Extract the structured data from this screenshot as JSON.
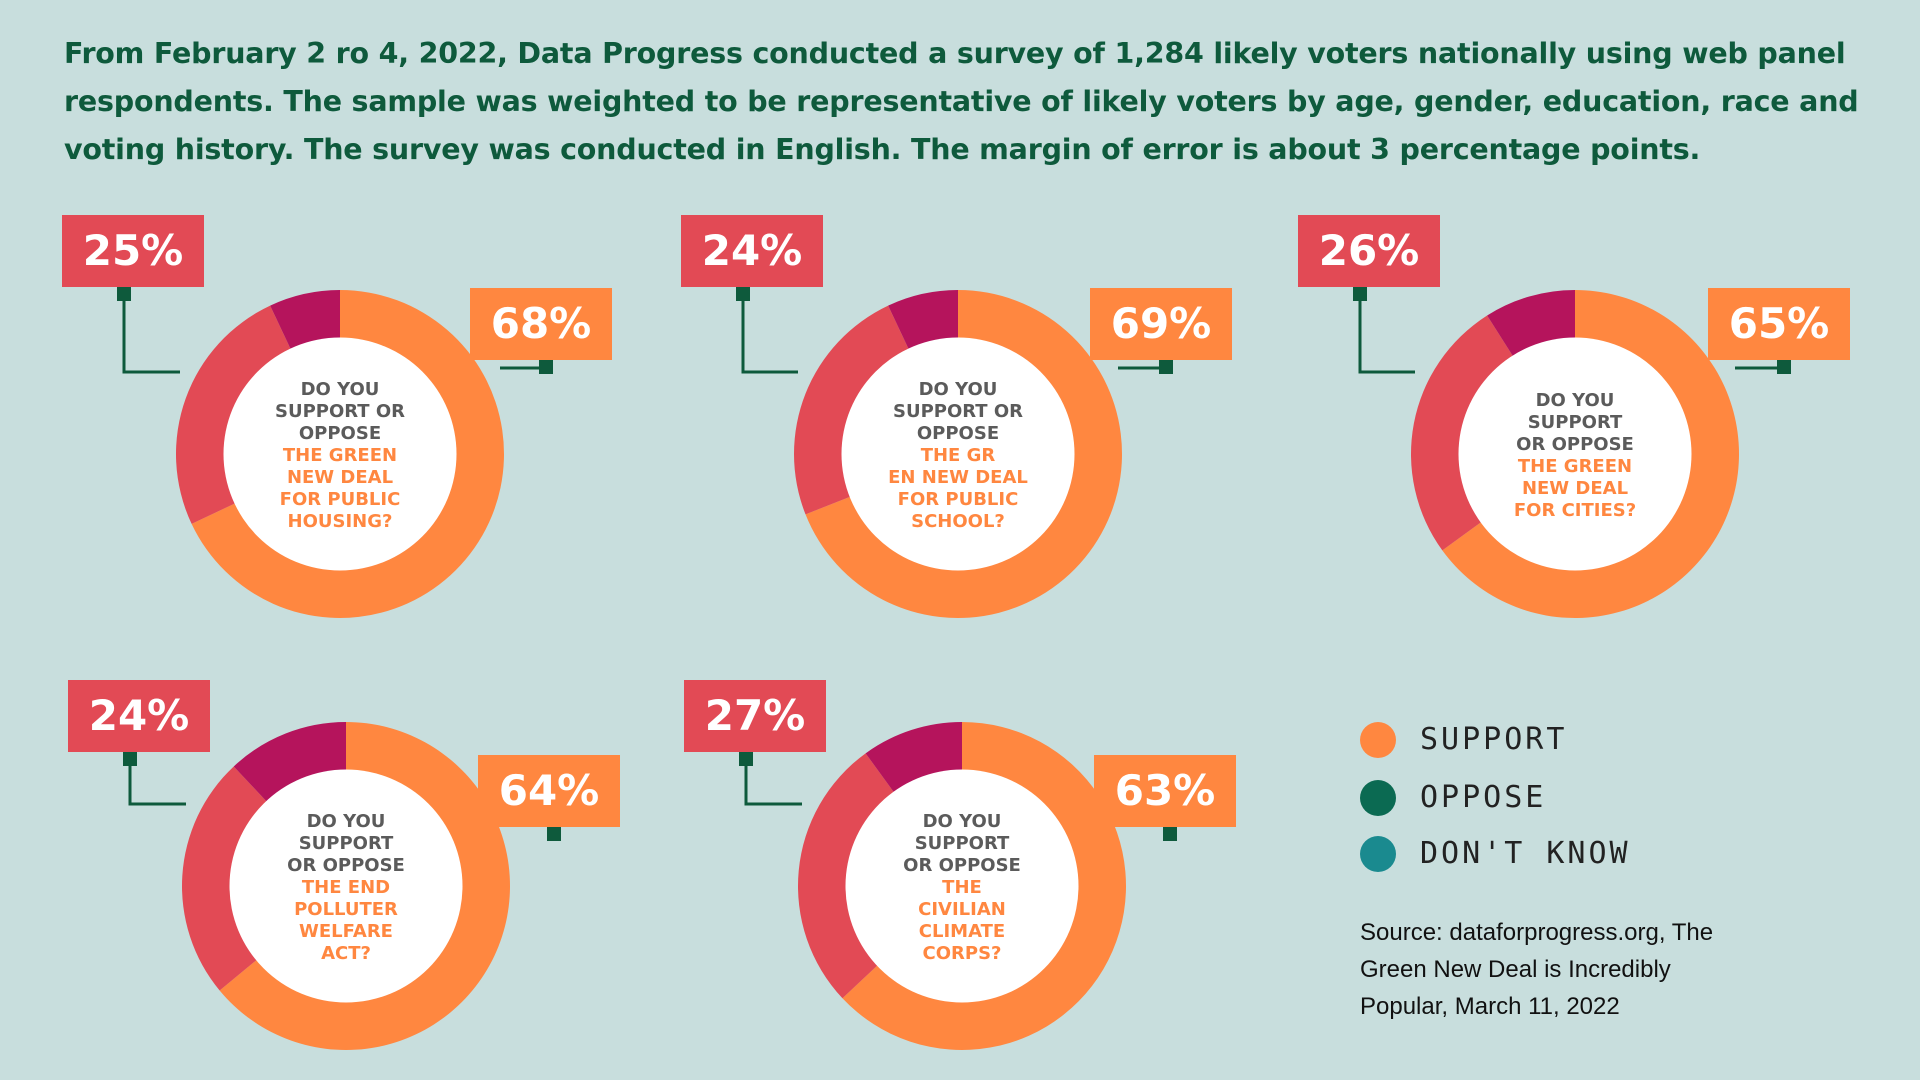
{
  "intro_text": "From February 2 ro 4, 2022, Data Progress conducted a survey of 1,284 likely voters nationally using web panel respondents. The sample was weighted to be representative of likely voters by age, gender, education, race and voting history. The survey was conducted in English. The margin of error is about 3 percentage points.",
  "colors": {
    "background": "#c8dedd",
    "support": "#ff8740",
    "oppose": "#e24a55",
    "dont_know": "#b5145c",
    "connector": "#0e5a3c",
    "question_dark": "#5b5b5b",
    "question_accent": "#ff8740",
    "legend_support": "#ff8740",
    "legend_oppose": "#0b6a52",
    "legend_dont_know": "#1a8a8f"
  },
  "chart_data": [
    {
      "type": "pie",
      "question": [
        "DO YOU",
        "SUPPORT OR",
        "OPPOSE"
      ],
      "topic": [
        "THE GREEN",
        "NEW DEAL",
        "FOR PUBLIC",
        "HOUSING?"
      ],
      "oppose_label": "25%",
      "support_label": "68%",
      "slices": [
        {
          "name": "SUPPORT",
          "value": 68
        },
        {
          "name": "OPPOSE",
          "value": 25
        },
        {
          "name": "DON'T KNOW",
          "value": 7
        }
      ]
    },
    {
      "type": "pie",
      "question": [
        "DO YOU",
        "SUPPORT OR",
        "OPPOSE"
      ],
      "topic": [
        "THE GR",
        "EN NEW DEAL",
        "FOR PUBLIC",
        "SCHOOL?"
      ],
      "oppose_label": "24%",
      "support_label": "69%",
      "slices": [
        {
          "name": "SUPPORT",
          "value": 69
        },
        {
          "name": "OPPOSE",
          "value": 24
        },
        {
          "name": "DON'T KNOW",
          "value": 7
        }
      ]
    },
    {
      "type": "pie",
      "question": [
        "DO YOU",
        "SUPPORT",
        "OR OPPOSE"
      ],
      "topic": [
        "THE GREEN",
        "NEW DEAL",
        "FOR CITIES?"
      ],
      "oppose_label": "26%",
      "support_label": "65%",
      "slices": [
        {
          "name": "SUPPORT",
          "value": 65
        },
        {
          "name": "OPPOSE",
          "value": 26
        },
        {
          "name": "DON'T KNOW",
          "value": 9
        }
      ]
    },
    {
      "type": "pie",
      "question": [
        "DO YOU",
        "SUPPORT",
        "OR OPPOSE"
      ],
      "topic": [
        "THE END",
        "POLLUTER",
        "WELFARE",
        "ACT?"
      ],
      "oppose_label": "24%",
      "support_label": "64%",
      "slices": [
        {
          "name": "SUPPORT",
          "value": 64
        },
        {
          "name": "OPPOSE",
          "value": 24
        },
        {
          "name": "DON'T KNOW",
          "value": 12
        }
      ]
    },
    {
      "type": "pie",
      "question": [
        "DO YOU",
        "SUPPORT",
        "OR OPPOSE"
      ],
      "topic": [
        "THE",
        "CIVILIAN",
        "CLIMATE",
        "CORPS?"
      ],
      "oppose_label": "27%",
      "support_label": "63%",
      "slices": [
        {
          "name": "SUPPORT",
          "value": 63
        },
        {
          "name": "OPPOSE",
          "value": 27
        },
        {
          "name": "DON'T KNOW",
          "value": 10
        }
      ]
    }
  ],
  "legend": {
    "support": "SUPPORT",
    "oppose": "OPPOSE",
    "dont_know": "DON'T KNOW"
  },
  "source_lines": [
    "Source: dataforprogress.org, The",
    "Green New Deal is Incredibly",
    "Popular, March 11, 2022"
  ]
}
